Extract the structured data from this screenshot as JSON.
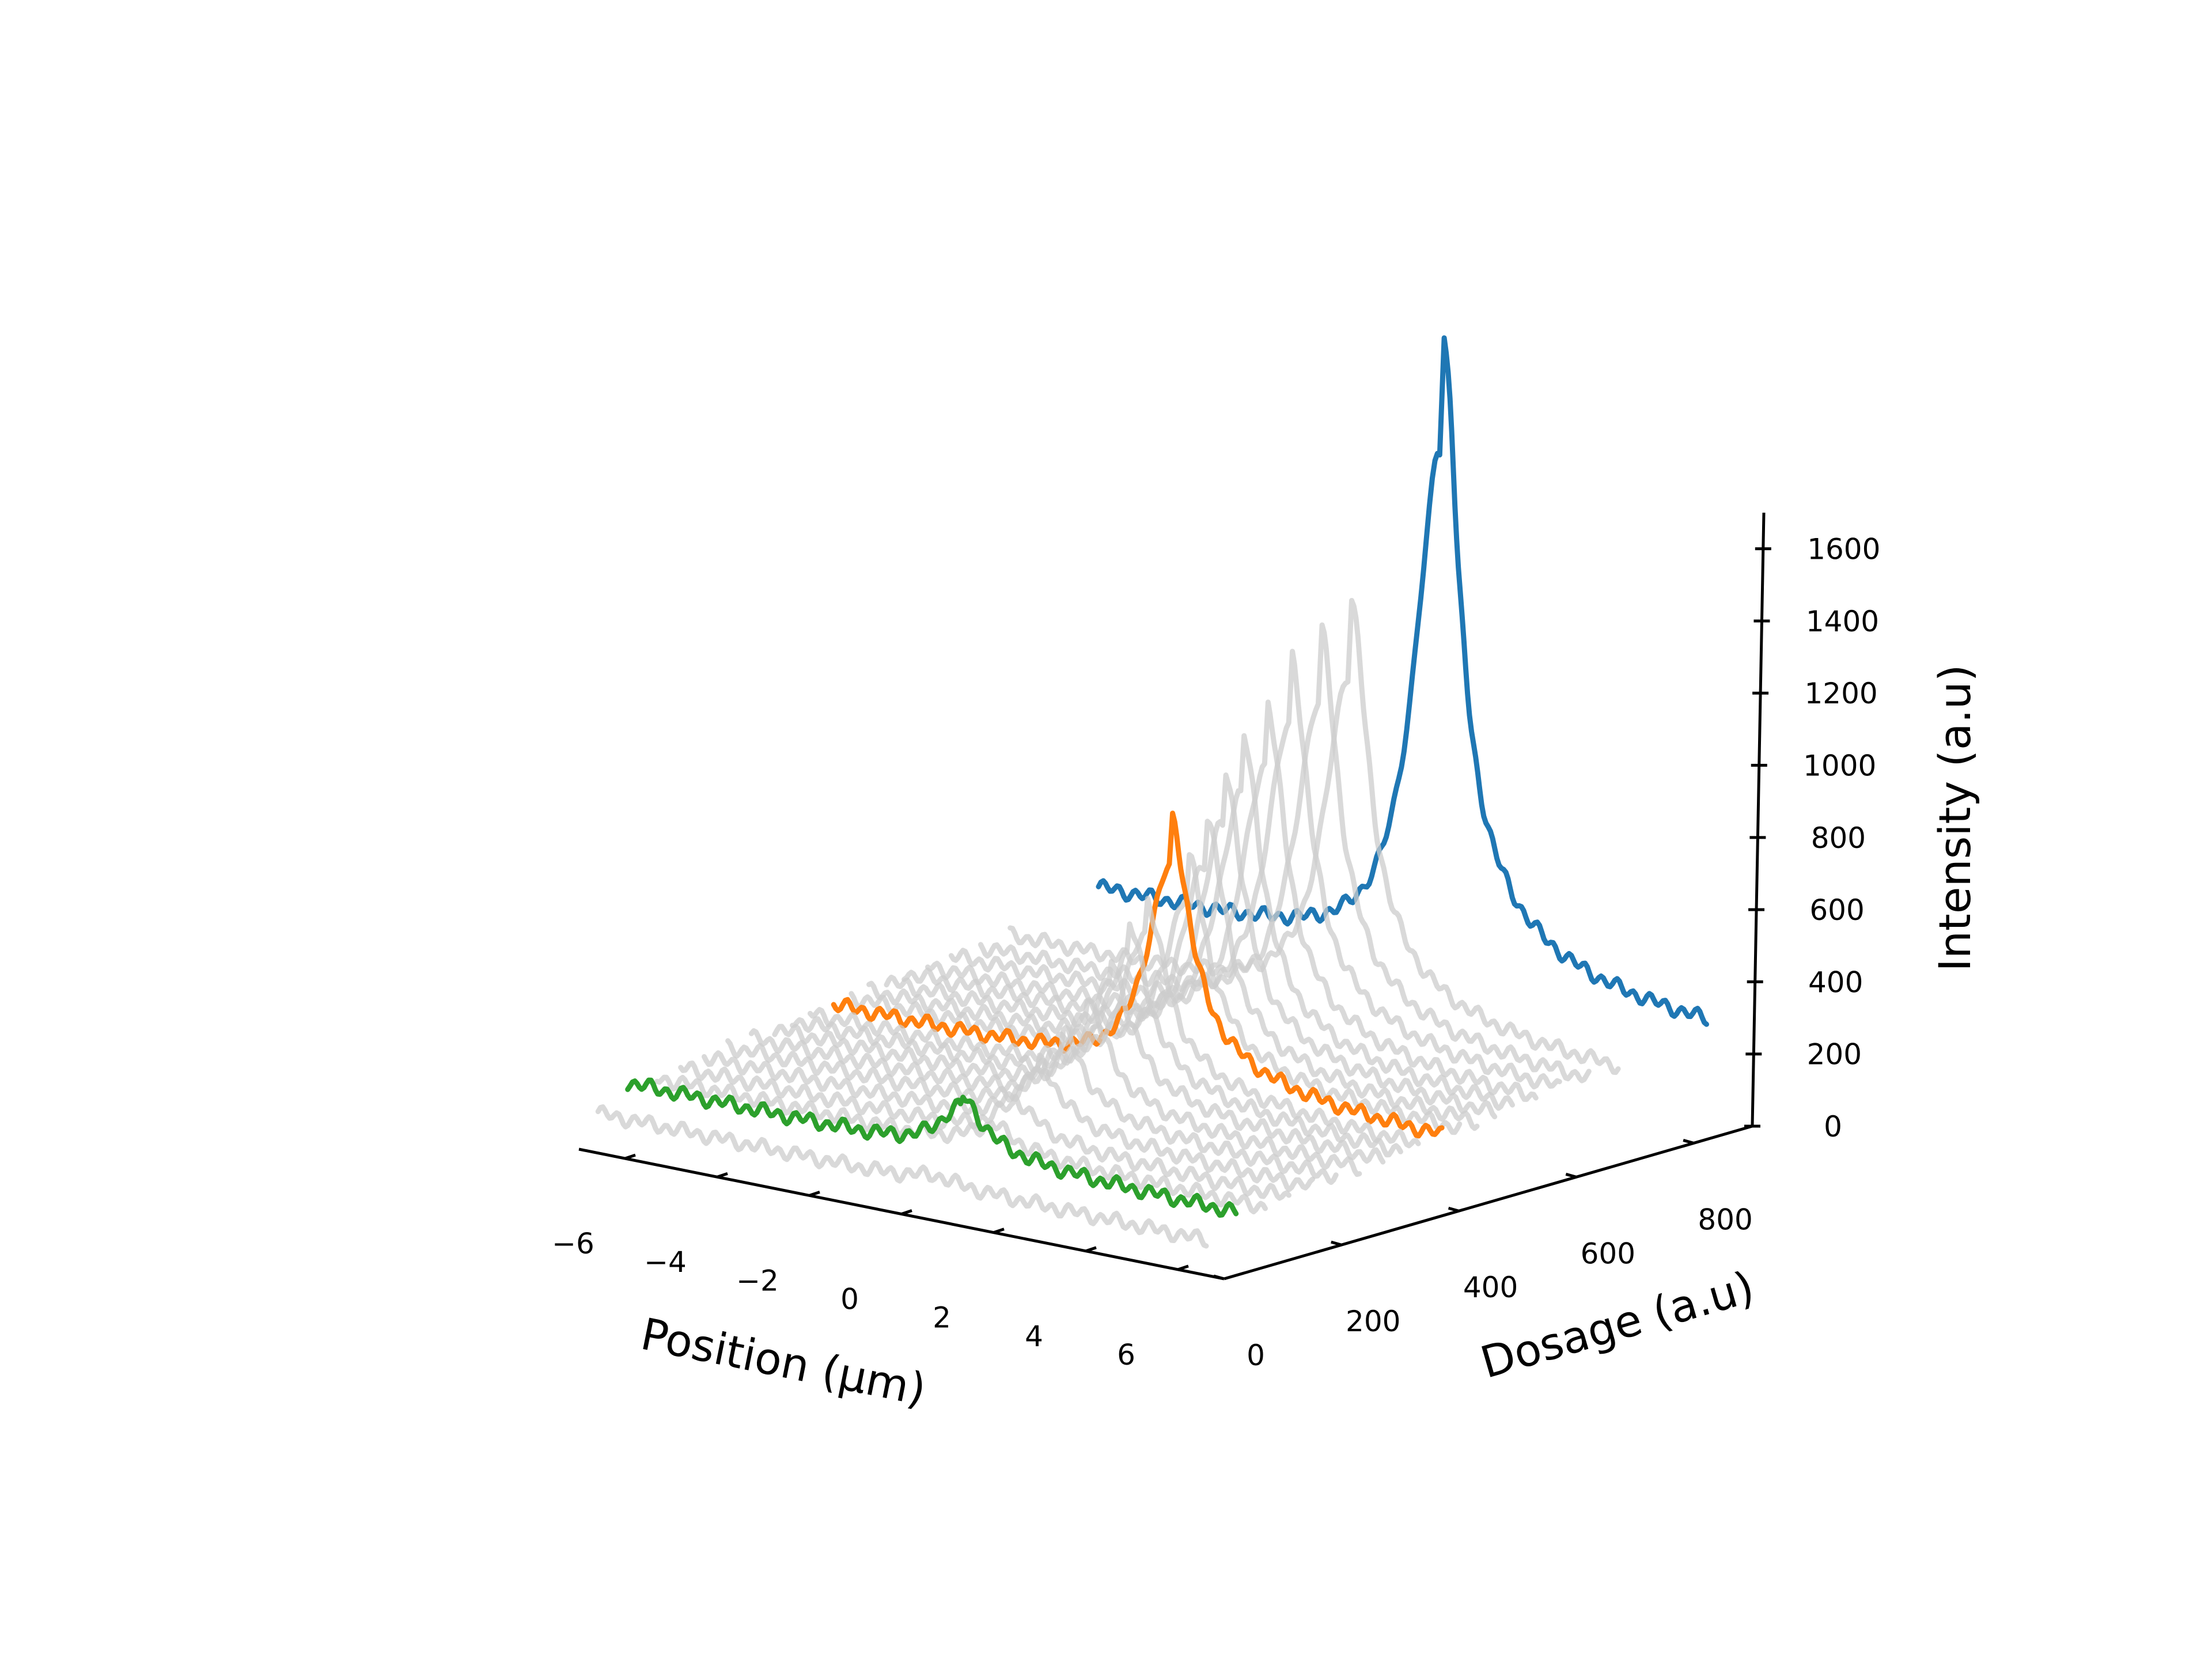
{
  "chart_data": {
    "type": "line",
    "projection": "3d-waterfall",
    "title": "",
    "xlabel": "Position (µm)",
    "ylabel": "Dosage (a.u)",
    "zlabel": "Intensity (a.u)",
    "xlim": [
      -7,
      7
    ],
    "ylim": [
      0,
      900
    ],
    "zlim": [
      0,
      1700
    ],
    "x_ticks": [
      -6,
      -4,
      -2,
      0,
      2,
      4,
      6
    ],
    "x_tick_labels": [
      "−6",
      "−4",
      "−2",
      "0",
      "2",
      "4",
      "6"
    ],
    "y_ticks": [
      0,
      200,
      400,
      600,
      800
    ],
    "y_tick_labels": [
      "0",
      "200",
      "400",
      "600",
      "800"
    ],
    "z_ticks": [
      0,
      200,
      400,
      600,
      800,
      1000,
      1200,
      1400,
      1600
    ],
    "z_tick_labels": [
      "0",
      "200",
      "400",
      "600",
      "800",
      "1000",
      "1200",
      "1400",
      "1600"
    ],
    "grid": false,
    "legend": "none",
    "colors": {
      "background_series": "#cccccc",
      "highlight_low": "#2ca02c",
      "highlight_mid": "#ff7f0e",
      "highlight_high": "#1f77b4"
    },
    "series": [
      {
        "dosage": 0,
        "baseline": 110,
        "peak": 20,
        "color": "#cccccc"
      },
      {
        "dosage": 50,
        "baseline": 170,
        "peak": 130,
        "color": "#2ca02c"
      },
      {
        "dosage": 100,
        "baseline": 160,
        "peak": 60,
        "color": "#cccccc"
      },
      {
        "dosage": 140,
        "baseline": 170,
        "peak": 90,
        "color": "#cccccc"
      },
      {
        "dosage": 180,
        "baseline": 180,
        "peak": 150,
        "color": "#cccccc"
      },
      {
        "dosage": 220,
        "baseline": 190,
        "peak": 200,
        "color": "#cccccc"
      },
      {
        "dosage": 260,
        "baseline": 195,
        "peak": 260,
        "color": "#cccccc"
      },
      {
        "dosage": 300,
        "baseline": 200,
        "peak": 320,
        "color": "#cccccc"
      },
      {
        "dosage": 330,
        "baseline": 210,
        "peak": 380,
        "color": "#cccccc"
      },
      {
        "dosage": 360,
        "baseline": 215,
        "peak": 420,
        "color": "#cccccc"
      },
      {
        "dosage": 400,
        "baseline": 220,
        "peak": 580,
        "color": "#ff7f0e"
      },
      {
        "dosage": 430,
        "baseline": 225,
        "peak": 480,
        "color": "#cccccc"
      },
      {
        "dosage": 460,
        "baseline": 230,
        "peak": 560,
        "color": "#cccccc"
      },
      {
        "dosage": 490,
        "baseline": 240,
        "peak": 640,
        "color": "#cccccc"
      },
      {
        "dosage": 520,
        "baseline": 250,
        "peak": 700,
        "color": "#cccccc"
      },
      {
        "dosage": 560,
        "baseline": 250,
        "peak": 760,
        "color": "#cccccc"
      },
      {
        "dosage": 600,
        "baseline": 260,
        "peak": 840,
        "color": "#cccccc"
      },
      {
        "dosage": 650,
        "baseline": 260,
        "peak": 880,
        "color": "#cccccc"
      },
      {
        "dosage": 700,
        "baseline": 270,
        "peak": 930,
        "color": "#cccccc"
      },
      {
        "dosage": 850,
        "baseline": 330,
        "peak": 1420,
        "color": "#1f77b4"
      }
    ]
  }
}
